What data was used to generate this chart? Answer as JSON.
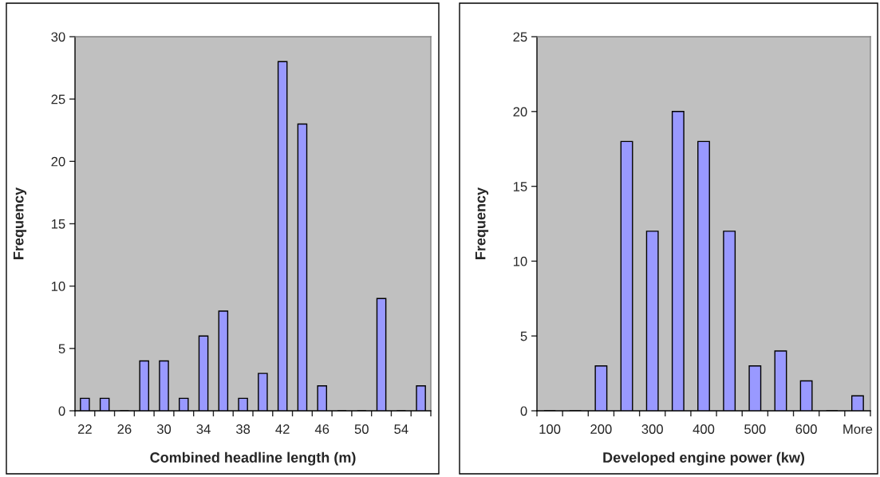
{
  "chart_data": [
    {
      "type": "bar",
      "xlabel": "Combined headline length (m)",
      "ylabel": "Frequency",
      "categories": [
        "22",
        null,
        "26",
        null,
        "30",
        null,
        "34",
        null,
        "38",
        null,
        "42",
        null,
        "46",
        null,
        "50",
        null,
        "54",
        null
      ],
      "values": [
        1,
        1,
        0,
        4,
        4,
        1,
        6,
        8,
        1,
        3,
        28,
        23,
        2,
        0,
        0,
        9,
        0,
        2
      ],
      "color": "#9999ff",
      "ylim": [
        0,
        30
      ],
      "yticks": [
        0,
        5,
        10,
        15,
        20,
        25,
        30
      ],
      "grid": false,
      "legend": false
    },
    {
      "type": "bar",
      "xlabel": "Developed engine power (kw)",
      "ylabel": "Frequency",
      "categories": [
        "100",
        null,
        "200",
        null,
        "300",
        null,
        "400",
        null,
        "500",
        null,
        "600",
        null,
        "More"
      ],
      "values": [
        0,
        0,
        3,
        18,
        12,
        20,
        18,
        12,
        3,
        4,
        2,
        0,
        1
      ],
      "color": "#9999ff",
      "ylim": [
        0,
        25
      ],
      "yticks": [
        0,
        5,
        10,
        15,
        20,
        25
      ],
      "grid": false,
      "legend": false
    }
  ]
}
